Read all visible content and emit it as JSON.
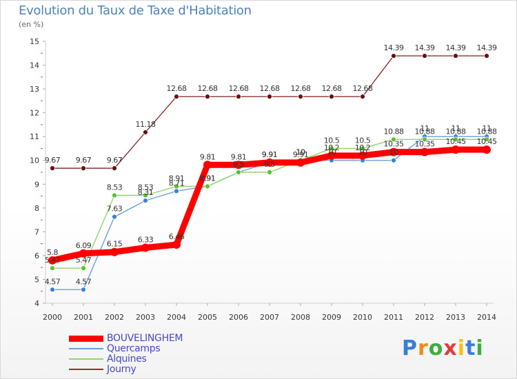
{
  "header": {
    "title": "Evolution du Taux de Taxe d'Habitation",
    "unit": "(en %)"
  },
  "logo": {
    "text": "Proxiti",
    "letters": [
      "P",
      "r",
      "o",
      "x",
      "i",
      "t",
      "i"
    ],
    "colors": [
      "#3a7fd5",
      "#f08a1c",
      "#3cae3c",
      "#e23a3a",
      "#f3c11b",
      "#3a7fd5",
      "#3cae3c"
    ]
  },
  "chart_data": {
    "type": "line",
    "x": [
      2000,
      2001,
      2002,
      2003,
      2004,
      2005,
      2006,
      2007,
      2008,
      2009,
      2010,
      2011,
      2012,
      2013,
      2014
    ],
    "ylim": [
      4,
      15
    ],
    "yticks": [
      4,
      5,
      6,
      7,
      8,
      9,
      10,
      11,
      12,
      13,
      14,
      15
    ],
    "ylabel": "(en %)",
    "grid": false,
    "legend_position": "bottom-left",
    "series": [
      {
        "name": "BOUVELINGHEM",
        "color": "#ff0000",
        "marker": "#ff0000",
        "style": "thick",
        "values": [
          5.8,
          6.09,
          6.15,
          6.33,
          6.46,
          9.81,
          9.81,
          9.91,
          9.91,
          10.2,
          10.2,
          10.35,
          10.35,
          10.45,
          10.45
        ],
        "labels": [
          "5.8",
          "6.09",
          "6.15",
          "6.33",
          "6.46",
          "9.81",
          "9.81",
          "9.91",
          "9.91",
          "10.2",
          "10.2",
          "10.35",
          "10.35",
          "10.45",
          "10.45"
        ]
      },
      {
        "name": "Quercamps",
        "color": "#6a9fd6",
        "marker": "#3a7fd5",
        "style": "thin",
        "values": [
          4.57,
          4.57,
          7.63,
          8.31,
          8.71,
          8.91,
          9.5,
          9.91,
          10.0,
          10.0,
          10.0,
          10.0,
          11.0,
          11.0,
          11.0
        ],
        "labels": [
          "4.57",
          "4.57",
          "7.63",
          "8.31",
          "8.71",
          "8.91",
          "9.5",
          "9.91",
          "10",
          "10",
          "10",
          "10",
          "11",
          "11",
          "11"
        ]
      },
      {
        "name": "Alquines",
        "color": "#8ed66a",
        "marker": "#56c42a",
        "style": "thin",
        "values": [
          5.47,
          5.47,
          8.53,
          8.53,
          8.91,
          8.91,
          9.5,
          9.5,
          10.0,
          10.5,
          10.5,
          10.88,
          10.88,
          10.88,
          10.88
        ],
        "labels": [
          "5.47",
          "5.47",
          "8.53",
          "8.53",
          "8.91",
          "8.91",
          "9.5",
          "9.5",
          "10",
          "10.5",
          "10.5",
          "10.88",
          "10.88",
          "10.88",
          "10.88"
        ]
      },
      {
        "name": "Journy",
        "color": "#8a3030",
        "marker": "#6a1010",
        "style": "thin",
        "values": [
          9.67,
          9.67,
          9.67,
          11.18,
          12.68,
          12.68,
          12.68,
          12.68,
          12.68,
          12.68,
          12.68,
          14.39,
          14.39,
          14.39,
          14.39
        ],
        "labels": [
          "9.67",
          "9.67",
          "9.67",
          "11.18",
          "12.68",
          "12.68",
          "12.68",
          "12.68",
          "12.68",
          "12.68",
          "12.68",
          "14.39",
          "14.39",
          "14.39",
          "14.39"
        ]
      }
    ]
  }
}
